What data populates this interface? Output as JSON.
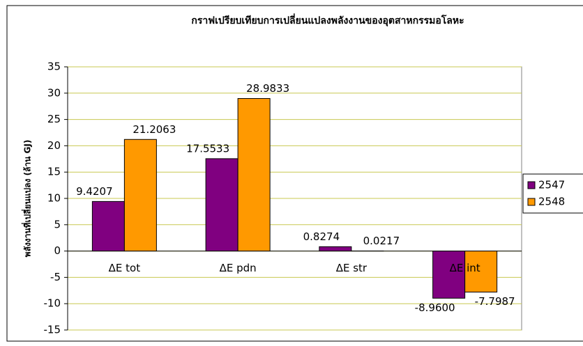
{
  "chart_data": {
    "type": "bar",
    "title": "กราฟเปรียบเทียบการเปลี่ยนแปลงพลังงานของอุตสาหกรรมอโลหะ",
    "y_label": "พลังงานที่เปลี่ยนแปลง (ล้าน GJ)",
    "categories": [
      "ΔE tot",
      "ΔE pdn",
      "ΔE str",
      "ΔE int"
    ],
    "series": [
      {
        "name": "2547",
        "color": "#800080",
        "values": [
          9.4207,
          17.5533,
          0.8274,
          -8.96
        ],
        "value_labels": [
          "9.4207",
          "17.5533",
          "0.8274",
          "-8.9600"
        ]
      },
      {
        "name": "2548",
        "color": "#ff9900",
        "values": [
          21.2063,
          28.9833,
          0.0217,
          -7.7987
        ],
        "value_labels": [
          "21.2063",
          "28.9833",
          "0.0217",
          "-7.7987"
        ]
      }
    ],
    "ylim": [
      -15,
      35
    ],
    "yticks": [
      -15,
      -10,
      -5,
      0,
      5,
      10,
      15,
      20,
      25,
      30,
      35
    ],
    "grid": true,
    "legend": "right"
  }
}
